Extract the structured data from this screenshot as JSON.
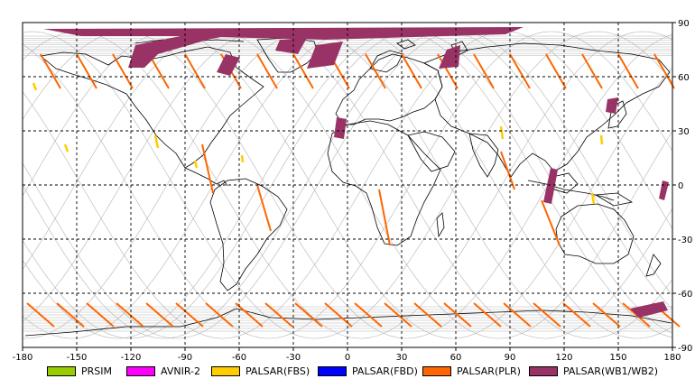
{
  "map": {
    "lon_ticks": [
      -180,
      -150,
      -120,
      -90,
      -60,
      -30,
      0,
      30,
      60,
      90,
      120,
      150,
      180
    ],
    "lat_ticks": [
      90,
      60,
      30,
      0,
      -30,
      -60,
      -90
    ],
    "colors": {
      "land_outline": "#000000",
      "grid": "#000000",
      "orbit_track": "#b4b4b4",
      "plr_swath": "#ff6600",
      "fbs_swath": "#ffcc00",
      "wb_swath": "#993366"
    }
  },
  "legend": {
    "items": [
      {
        "label": "PRSIM",
        "color": "#99cc00"
      },
      {
        "label": "AVNIR-2",
        "color": "#ff00ff"
      },
      {
        "label": "PALSAR(FBS)",
        "color": "#ffcc00"
      },
      {
        "label": "PALSAR(FBD)",
        "color": "#0000ff"
      },
      {
        "label": "PALSAR(PLR)",
        "color": "#ff6600"
      },
      {
        "label": "PALSAR(WB1/WB2)",
        "color": "#993366"
      }
    ]
  }
}
